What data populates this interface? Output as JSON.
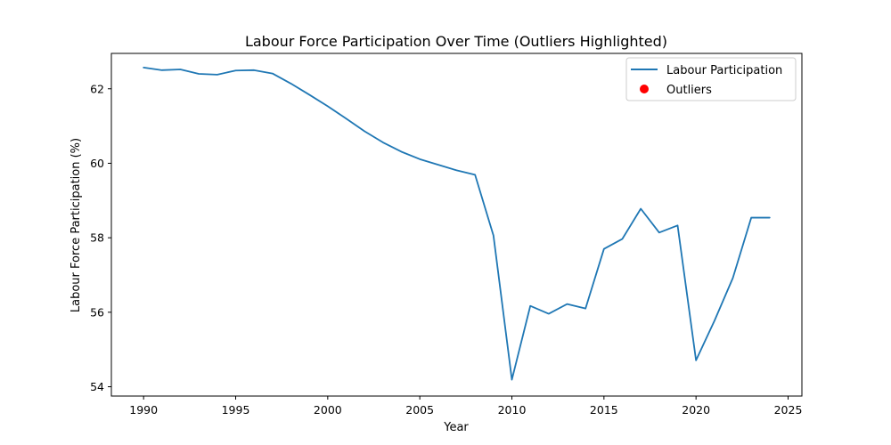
{
  "chart_data": {
    "type": "line",
    "title": "Labour Force Participation Over Time (Outliers Highlighted)",
    "xlabel": "Year",
    "ylabel": "Labour Force Participation (%)",
    "xlim": [
      1988.25,
      2025.75
    ],
    "ylim": [
      53.75,
      62.95
    ],
    "xticks": [
      1990,
      1995,
      2000,
      2005,
      2010,
      2015,
      2020,
      2025
    ],
    "yticks": [
      54,
      56,
      58,
      60,
      62
    ],
    "grid": false,
    "legend_position": "upper right",
    "series": [
      {
        "name": "Labour Participation",
        "kind": "line",
        "color": "#1f77b4",
        "x": [
          1990,
          1991,
          1992,
          1993,
          1994,
          1995,
          1996,
          1997,
          1998,
          1999,
          2000,
          2001,
          2002,
          2003,
          2004,
          2005,
          2006,
          2007,
          2008,
          2009,
          2010,
          2011,
          2012,
          2013,
          2014,
          2015,
          2016,
          2017,
          2018,
          2019,
          2020,
          2021,
          2022,
          2023,
          2024
        ],
        "y": [
          62.57,
          62.5,
          62.52,
          62.4,
          62.38,
          62.49,
          62.5,
          62.41,
          62.14,
          61.84,
          61.53,
          61.2,
          60.86,
          60.56,
          60.31,
          60.11,
          59.96,
          59.81,
          59.69,
          58.06,
          54.19,
          56.17,
          55.96,
          56.22,
          56.1,
          57.7,
          57.97,
          58.78,
          58.14,
          58.33,
          54.71,
          55.77,
          56.92,
          58.54,
          58.54
        ]
      },
      {
        "name": "Outliers",
        "kind": "scatter",
        "color": "#ff0000",
        "x": [],
        "y": []
      }
    ]
  }
}
